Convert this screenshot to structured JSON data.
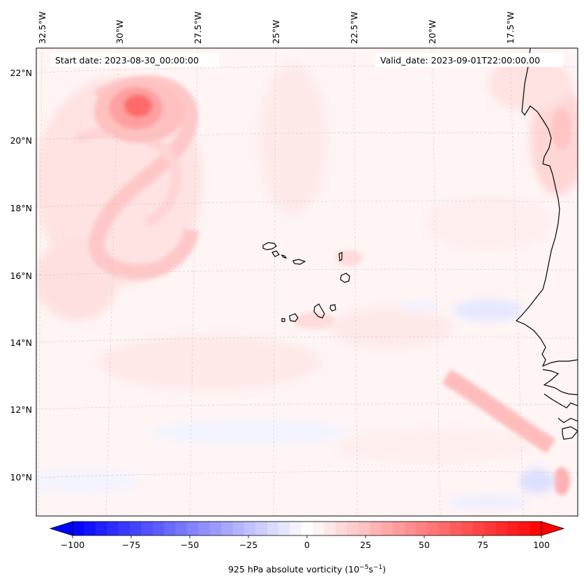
{
  "header": {
    "start_date": "Start date: 2023-08-30_00:00:00",
    "valid_date": "Valid_date: 2023-09-01T22:00:00.00"
  },
  "longitude_labels": [
    "32.5°W",
    "30°W",
    "27.5°W",
    "25°W",
    "22.5°W",
    "20°W",
    "17.5°W"
  ],
  "latitude_labels": [
    "22°N",
    "20°N",
    "18°N",
    "16°N",
    "14°N",
    "12°N",
    "10°N"
  ],
  "colorbar": {
    "min": -100,
    "max": 100,
    "levels": 41,
    "ticks": [
      "−100",
      "−75",
      "−50",
      "−25",
      "0",
      "25",
      "50",
      "75",
      "100"
    ],
    "label": "925 hPa absolute vorticity (10",
    "label_exp1": "−5",
    "label_mid": "s",
    "label_exp2": "−1",
    "label_end": ")",
    "low_color": "#0000ff",
    "high_color": "#ff0000",
    "mid_color": "#ffffff"
  },
  "field_colors": {
    "background": "#fff5f5",
    "weak_pos": "#ffe4e4",
    "mod_pos": "#ffcccc",
    "strong_pos": "#ff9a9a",
    "peak_pos": "#ff6060",
    "weak_neg": "#eef0ff",
    "mod_neg": "#dde0ff"
  }
}
